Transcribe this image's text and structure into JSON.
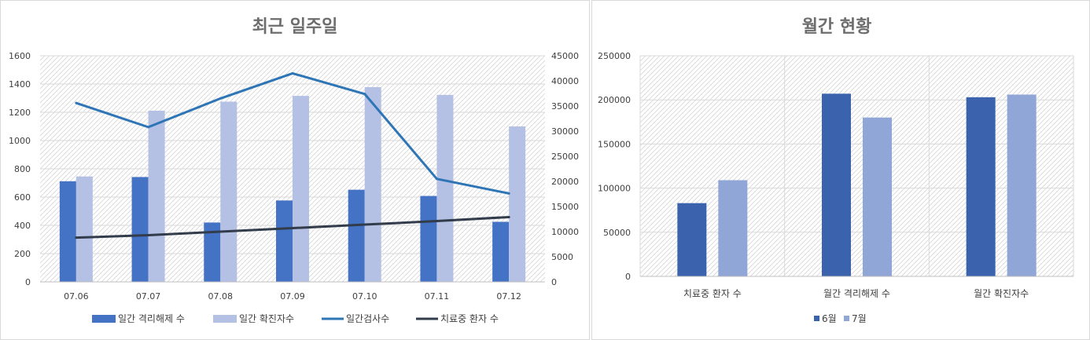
{
  "chart_data": [
    {
      "type": "bar",
      "title": "최근 일주일",
      "categories": [
        "07.06",
        "07.07",
        "07.08",
        "07.09",
        "07.10",
        "07.11",
        "07.12"
      ],
      "ylim": [
        0,
        1600
      ],
      "yticks": [
        0,
        200,
        400,
        600,
        800,
        1000,
        1200,
        1400,
        1600
      ],
      "y2lim": [
        0,
        45000
      ],
      "y2ticks": [
        0,
        5000,
        10000,
        15000,
        20000,
        25000,
        30000,
        35000,
        40000,
        45000
      ],
      "series": [
        {
          "name": "일간 격리해제 수",
          "kind": "bar",
          "axis": "left",
          "color": "#4472c4",
          "values": [
            712,
            742,
            420,
            576,
            652,
            608,
            425
          ]
        },
        {
          "name": "일간 확진자수",
          "kind": "bar",
          "axis": "left",
          "color": "#b4c0e4",
          "values": [
            746,
            1211,
            1275,
            1316,
            1378,
            1323,
            1100
          ]
        },
        {
          "name": "일간검사수",
          "kind": "line",
          "axis": "right",
          "color": "#2e75b6",
          "values": [
            35600,
            30800,
            36500,
            41500,
            37400,
            20500,
            17600
          ]
        },
        {
          "name": "치료중 환자 수",
          "kind": "line",
          "axis": "right",
          "color": "#323c4b",
          "values": [
            8800,
            9300,
            10000,
            10700,
            11400,
            12100,
            12900
          ]
        }
      ],
      "grid": true,
      "legend": "bottom"
    },
    {
      "type": "bar",
      "title": "월간 현황",
      "categories": [
        "치료중 환자 수",
        "월간 격리해제 수",
        "월간 확진자수"
      ],
      "ylim": [
        0,
        250000
      ],
      "yticks": [
        0,
        50000,
        100000,
        150000,
        200000,
        250000
      ],
      "series": [
        {
          "name": "6월",
          "color": "#3a62ad",
          "values": [
            83000,
            207000,
            203000
          ]
        },
        {
          "name": "7월",
          "color": "#8fa6d6",
          "values": [
            109000,
            180000,
            206000
          ]
        }
      ],
      "grid": true,
      "legend": "bottom"
    }
  ]
}
